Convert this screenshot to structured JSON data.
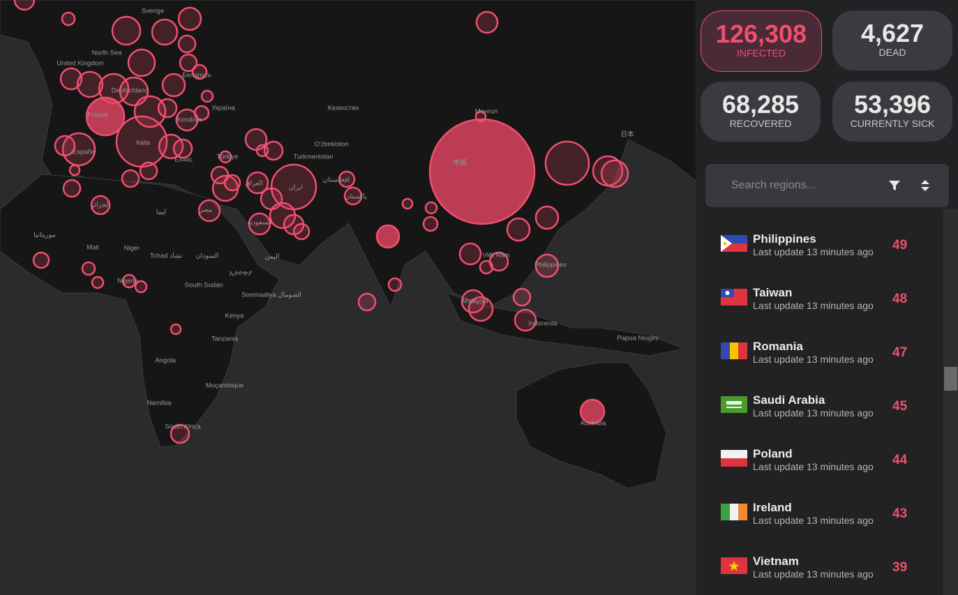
{
  "map": {
    "labels": [
      "Sverige",
      "North Sea",
      "United Kingdom",
      "Deutschland",
      "Беларусь",
      "Україна",
      "France",
      "España",
      "Italia",
      "Ελλάς",
      "Türkiye",
      "Казахстан",
      "Монгол",
      "O'zbekiston",
      "Turkmenistan",
      "ایران",
      "العراق",
      "السعودية",
      "مصر",
      "ليبيا",
      "الجزائر",
      "موريتانيا",
      "Mali",
      "Niger",
      "Tchad تشاد",
      "السودان",
      "South Sudan",
      "ኢትዮጵያ",
      "Soomaaliya الصومال",
      "Kenya",
      "Tanzania",
      "Angola",
      "Moçambique",
      "Namibia",
      "South Africa",
      "Nigeria",
      "Việt Nam",
      "Philippines",
      "Malaysia",
      "Indonesia",
      "Papua Niugini",
      "Australia",
      "中国",
      "日本",
      "افغانستان",
      "پاکستان",
      "اليمن",
      "România"
    ]
  },
  "stats": [
    {
      "value": "126,308",
      "label": "INFECTED"
    },
    {
      "value": "4,627",
      "label": "DEAD"
    },
    {
      "value": "68,285",
      "label": "RECOVERED"
    },
    {
      "value": "53,396",
      "label": "CURRENTLY SICK"
    }
  ],
  "search": {
    "placeholder": "Search regions..."
  },
  "regions": [
    {
      "name": "Philippines",
      "update": "Last update 13 minutes ago",
      "count": "49"
    },
    {
      "name": "Taiwan",
      "update": "Last update 13 minutes ago",
      "count": "48"
    },
    {
      "name": "Romania",
      "update": "Last update 13 minutes ago",
      "count": "47"
    },
    {
      "name": "Saudi Arabia",
      "update": "Last update 13 minutes ago",
      "count": "45"
    },
    {
      "name": "Poland",
      "update": "Last update 13 minutes ago",
      "count": "44"
    },
    {
      "name": "Ireland",
      "update": "Last update 13 minutes ago",
      "count": "43"
    },
    {
      "name": "Vietnam",
      "update": "Last update 13 minutes ago",
      "count": "39"
    }
  ]
}
